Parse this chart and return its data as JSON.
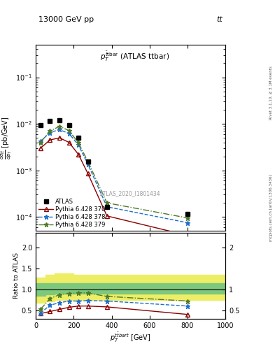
{
  "title_left": "13000 GeV pp",
  "title_right": "tt",
  "panel_title": "$p_T^{\\bar{t}\\mathrm{bar}}$ (ATLAS ttbar)",
  "watermark": "ATLAS_2020_I1801434",
  "right_label_top": "Rivet 3.1.10, ≥ 3.1M events",
  "right_label_bottom": "mcplots.cern.ch [arXiv:1306.3436]",
  "atlas_x": [
    25,
    75,
    125,
    175,
    225,
    275,
    375,
    800
  ],
  "atlas_y": [
    0.0095,
    0.0115,
    0.012,
    0.0095,
    0.005,
    0.00155,
    0.000165,
    0.000115
  ],
  "py370_x": [
    25,
    75,
    125,
    175,
    225,
    275,
    375,
    800
  ],
  "py370_y": [
    0.003,
    0.0045,
    0.005,
    0.004,
    0.0022,
    0.00085,
    0.000105,
    4e-05
  ],
  "py378_x": [
    25,
    75,
    125,
    175,
    225,
    275,
    375,
    800
  ],
  "py378_y": [
    0.0042,
    0.0065,
    0.0075,
    0.0062,
    0.0035,
    0.00135,
    0.000165,
    7.5e-05
  ],
  "py379_x": [
    25,
    75,
    125,
    175,
    225,
    275,
    375,
    800
  ],
  "py379_y": [
    0.004,
    0.007,
    0.0088,
    0.0072,
    0.0039,
    0.00155,
    0.0002,
    9.5e-05
  ],
  "ratio_py370": [
    0.42,
    0.47,
    0.52,
    0.57,
    0.6,
    0.6,
    0.58,
    0.4
  ],
  "ratio_py378": [
    0.43,
    0.62,
    0.68,
    0.72,
    0.72,
    0.73,
    0.72,
    0.6
  ],
  "ratio_py379": [
    0.52,
    0.78,
    0.87,
    0.9,
    0.92,
    0.91,
    0.83,
    0.72
  ],
  "band_x_edges": [
    0,
    50,
    100,
    150,
    200,
    250,
    300,
    450,
    1000
  ],
  "band_green_lo": [
    0.85,
    0.88,
    0.9,
    0.9,
    0.9,
    0.9,
    0.9,
    0.9
  ],
  "band_green_hi": [
    1.15,
    1.15,
    1.15,
    1.15,
    1.15,
    1.15,
    1.15,
    1.15
  ],
  "band_yellow_lo": [
    0.68,
    0.72,
    0.75,
    0.75,
    0.75,
    0.75,
    0.75,
    0.75
  ],
  "band_yellow_hi": [
    1.28,
    1.35,
    1.38,
    1.38,
    1.35,
    1.35,
    1.35,
    1.35
  ],
  "color_py370": "#8B0000",
  "color_py378": "#1E6ECC",
  "color_py379": "#4E7A28",
  "color_atlas": "black",
  "color_band_green": "#7EC87E",
  "color_band_yellow": "#EEEE66",
  "ylim_main": [
    5e-05,
    0.5
  ],
  "xlim": [
    0,
    1000
  ],
  "ratio_ylim": [
    0.3,
    2.35
  ],
  "ratio_yticks": [
    0.5,
    1.0,
    1.5,
    2.0
  ]
}
